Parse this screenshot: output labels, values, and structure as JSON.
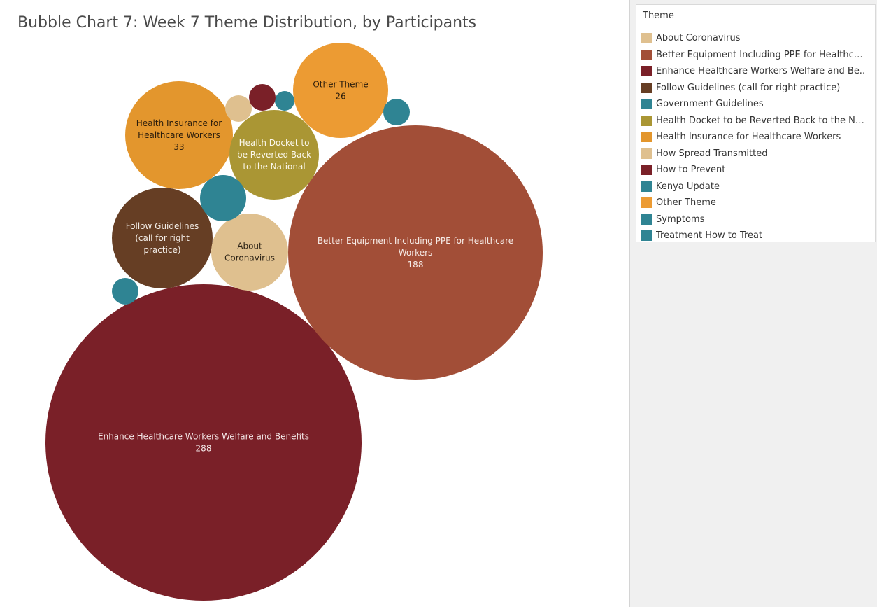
{
  "chart_data": {
    "type": "bubble",
    "title": "Bubble Chart 7: Week 7 Theme Distribution, by Participants",
    "legend_title": "Theme",
    "legend_position": "right",
    "bubbles": [
      {
        "id": "enhance",
        "theme": "Enhance Healthcare Workers Welfare and Benefits",
        "value": 288,
        "label_lines": [
          "Enhance Healthcare Workers Welfare and Benefits",
          "288"
        ],
        "color": "#7A2028"
      },
      {
        "id": "better-equipment",
        "theme": "Better Equipment Including PPE for Healthcare Workers",
        "value": 188,
        "label_lines": [
          "Better Equipment Including PPE for Healthcare",
          "Workers",
          "188"
        ],
        "color": "#A24E37"
      },
      {
        "id": "health-insurance",
        "theme": "Health Insurance for Healthcare Workers",
        "value": 33,
        "label_lines": [
          "Health Insurance for",
          "Healthcare Workers",
          "33"
        ],
        "color": "#E3962D"
      },
      {
        "id": "other",
        "theme": "Other Theme",
        "value": 26,
        "label_lines": [
          "Other Theme",
          "26"
        ],
        "color": "#EC9B33"
      },
      {
        "id": "follow-guidelines",
        "theme": "Follow Guidelines (call for right practice)",
        "value": null,
        "label_lines": [
          "Follow Guidelines",
          "(call for right",
          "practice)"
        ],
        "color": "#663E24"
      },
      {
        "id": "health-docket",
        "theme": "Health Docket to be Reverted Back to the National",
        "value": null,
        "label_lines": [
          "Health Docket to",
          "be Reverted Back",
          "to the National"
        ],
        "color": "#AA9634"
      },
      {
        "id": "about-coronavirus",
        "theme": "About Coronavirus",
        "value": null,
        "label_lines": [
          "About",
          "Coronavirus"
        ],
        "color": "#DFC08F"
      },
      {
        "id": "government-guidelines",
        "theme": "Government Guidelines",
        "value": null,
        "label_lines": [],
        "color": "#2F8493"
      },
      {
        "id": "kenya-update",
        "theme": "Kenya Update",
        "value": null,
        "label_lines": [],
        "color": "#2F8493"
      },
      {
        "id": "symptoms",
        "theme": "Symptoms",
        "value": null,
        "label_lines": [],
        "color": "#2F8493"
      },
      {
        "id": "treatment",
        "theme": "Treatment How to Treat",
        "value": null,
        "label_lines": [],
        "color": "#2F8493"
      },
      {
        "id": "how-spread",
        "theme": "How Spread Transmitted",
        "value": null,
        "label_lines": [],
        "color": "#DFC08F"
      },
      {
        "id": "how-prevent",
        "theme": "How to Prevent",
        "value": null,
        "label_lines": [],
        "color": "#7A2028"
      }
    ]
  },
  "legend": {
    "title": "Theme",
    "items": [
      {
        "label": "About Coronavirus",
        "color": "#DFC08F"
      },
      {
        "label": "Better Equipment Including PPE for Healthcar..",
        "color": "#A24E37"
      },
      {
        "label": "Enhance Healthcare Workers Welfare and Be..",
        "color": "#7A2028"
      },
      {
        "label": "Follow Guidelines (call for right practice)",
        "color": "#663E24"
      },
      {
        "label": "Government Guidelines",
        "color": "#2F8493"
      },
      {
        "label": "Health Docket to be Reverted Back to the Nati..",
        "color": "#AA9634"
      },
      {
        "label": "Health Insurance for Healthcare Workers",
        "color": "#E3962D"
      },
      {
        "label": "How Spread Transmitted",
        "color": "#DFC08F"
      },
      {
        "label": "How to Prevent",
        "color": "#7A2028"
      },
      {
        "label": "Kenya Update",
        "color": "#2F8493"
      },
      {
        "label": "Other Theme",
        "color": "#EC9B33"
      },
      {
        "label": "Symptoms",
        "color": "#2F8493"
      },
      {
        "label": "Treatment How to Treat",
        "color": "#2F8493"
      }
    ]
  }
}
